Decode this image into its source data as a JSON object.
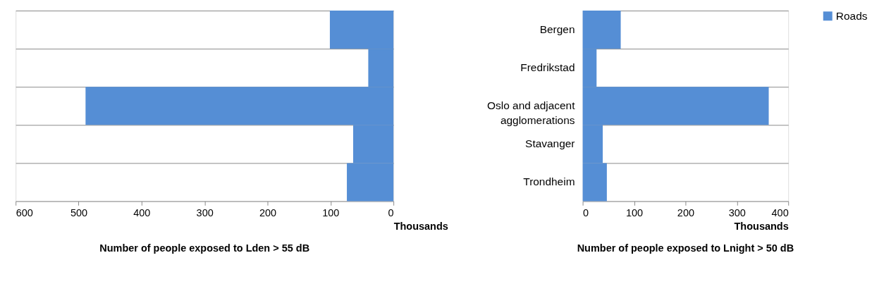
{
  "chart_data": [
    {
      "type": "bar",
      "orientation": "horizontal",
      "xlabel": "Number of people exposed to Lden > 55 dB",
      "annotations": [
        "Thousands"
      ],
      "categories": [
        "Bergen",
        "Fredrikstad",
        "Oslo and adjacent agglomerations",
        "Stavanger",
        "Trondheim"
      ],
      "series": [
        {
          "color": "#558ed5",
          "values": [
            101,
            40,
            489,
            64,
            74
          ]
        }
      ],
      "xlim": [
        600,
        0
      ],
      "xticks": [
        600,
        500,
        400,
        300,
        200,
        100,
        0
      ],
      "grid": "y",
      "tick_labels": "x"
    },
    {
      "type": "bar",
      "orientation": "horizontal",
      "xlabel": "Number of people exposed to Lnight > 50 dB",
      "annotations": [
        "Thousands"
      ],
      "categories": [
        "Bergen",
        "Fredrikstad",
        "Oslo and adjacent agglomerations",
        "Stavanger",
        "Trondheim"
      ],
      "series": [
        {
          "name": "Roads",
          "color": "#558ed5",
          "values": [
            74,
            27,
            362,
            39,
            47
          ]
        }
      ],
      "xlim": [
        0,
        400
      ],
      "xticks": [
        0,
        100,
        200,
        300,
        400
      ],
      "grid": "y",
      "legend": "right"
    }
  ]
}
